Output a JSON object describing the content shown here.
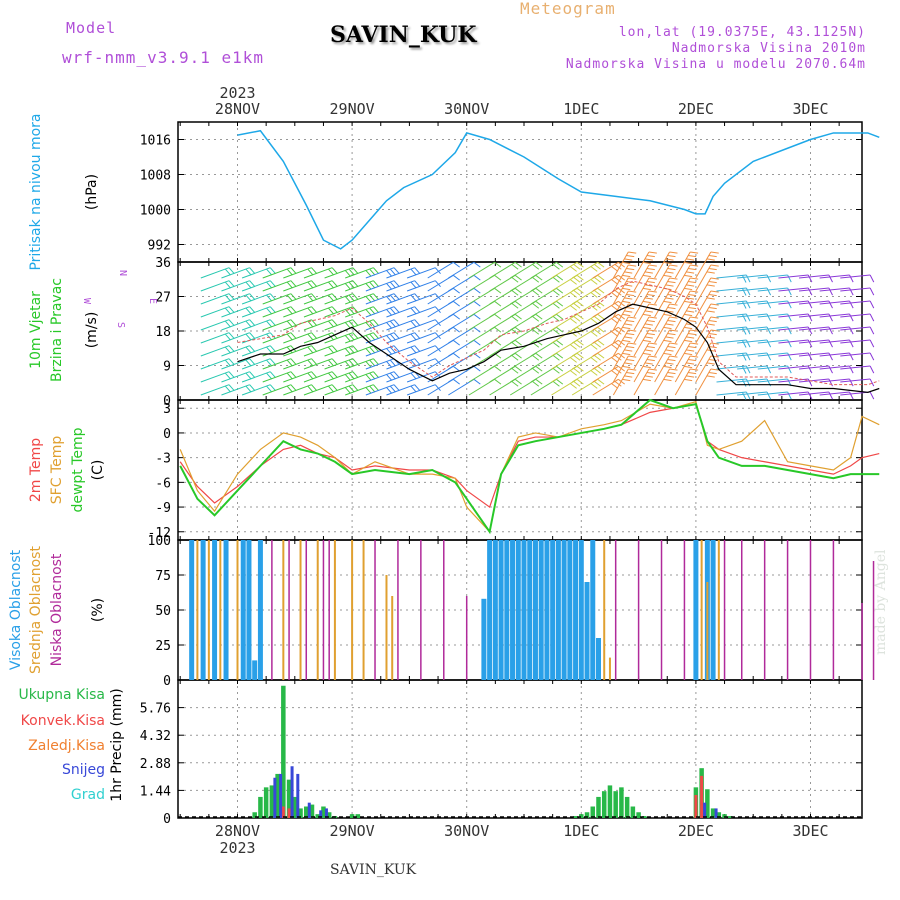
{
  "header": {
    "model_label": "Model",
    "model_name": "wrf-nmm_v3.9.1 e1km",
    "station": "SAVIN_KUK",
    "product": "Meteogram",
    "lonlat": "lon,lat (19.0375E, 43.1125N)",
    "elevation": "Nadmorska Visina 2010m",
    "elevation_model": "Nadmorska Visina u modelu 2070.64m"
  },
  "footer": {
    "station": "SAVIN_KUK",
    "credit": "made by Angel"
  },
  "colors": {
    "pressure": "#1ea8e8",
    "temp2m": "#f04848",
    "sfc_temp": "#e0a030",
    "dewpoint": "#28c828",
    "cloud_high": "#2aa0e8",
    "cloud_mid": "#e0a030",
    "cloud_low": "#b02a9a",
    "precip_total": "#28b848",
    "precip_conv": "#f04848",
    "precip_frozen": "#f08030",
    "precip_snow": "#3848d8",
    "precip_graupel": "#30d0d0"
  },
  "chart_data": [
    {
      "type": "line",
      "panel": "pressure",
      "title": "Pritisak na nivou mora",
      "ylabel": "(hPa)",
      "yticks": [
        992,
        1000,
        1008,
        1016
      ],
      "ylim": [
        988,
        1020
      ],
      "xticks": [
        "28NOV",
        "29NOV",
        "30NOV",
        "1DEC",
        "2DEC",
        "3DEC"
      ],
      "year": "2023",
      "x_days": [
        0.0,
        0.2,
        0.4,
        0.6,
        0.75,
        0.9,
        1.0,
        1.2,
        1.3,
        1.45,
        1.7,
        1.9,
        2.0,
        2.2,
        2.5,
        2.8,
        3.0,
        3.3,
        3.6,
        3.9,
        4.0,
        4.08,
        4.15,
        4.25,
        4.5,
        4.8,
        5.0,
        5.2,
        5.5,
        5.6
      ],
      "values": [
        1017,
        1018,
        1011,
        1001,
        993,
        991,
        993,
        999,
        1002,
        1005,
        1008,
        1013,
        1017.5,
        1016,
        1012,
        1007,
        1004,
        1003,
        1002,
        1000,
        999,
        999,
        1003,
        1006,
        1011,
        1014,
        1016,
        1017.5,
        1017.5,
        1016.5
      ]
    },
    {
      "type": "line",
      "panel": "wind",
      "title": "10m Vjetar Brzina i Pravac",
      "ylabel": "(m/s)",
      "yticks": [
        0,
        9,
        18,
        27,
        36
      ],
      "ylim": [
        0,
        36
      ],
      "compass": [
        "N",
        "S",
        "E",
        "W"
      ],
      "series": [
        {
          "name": "speed",
          "x_days": [
            0.0,
            0.2,
            0.4,
            0.55,
            0.7,
            0.85,
            1.0,
            1.15,
            1.3,
            1.5,
            1.7,
            1.85,
            2.0,
            2.15,
            2.3,
            2.5,
            2.7,
            2.85,
            3.0,
            3.15,
            3.3,
            3.45,
            3.6,
            3.75,
            3.9,
            4.0,
            4.1,
            4.2,
            4.35,
            4.6,
            4.8,
            5.0,
            5.2,
            5.5,
            5.6
          ],
          "values": [
            10,
            12,
            12,
            14,
            15,
            17,
            19,
            15,
            12,
            8,
            5,
            7,
            8,
            10,
            13,
            14,
            16,
            17,
            18,
            20,
            23,
            25,
            24,
            23,
            21,
            19,
            15,
            8,
            4,
            4,
            4,
            3,
            3,
            2,
            3
          ]
        },
        {
          "name": "gust",
          "x_days": [
            0.0,
            0.2,
            0.4,
            0.55,
            0.7,
            0.85,
            1.0,
            1.15,
            1.3,
            1.5,
            1.7,
            1.85,
            2.0,
            2.15,
            2.3,
            2.5,
            2.7,
            2.85,
            3.0,
            3.15,
            3.3,
            3.45,
            3.6,
            3.75,
            3.9,
            4.0,
            4.1,
            4.2,
            4.35,
            4.6,
            4.8,
            5.0,
            5.2,
            5.5,
            5.6
          ],
          "values": [
            15,
            16,
            17,
            20,
            21,
            22,
            24,
            20,
            15,
            10,
            6,
            9,
            11,
            13,
            17,
            18,
            20,
            21,
            23,
            25,
            29,
            31,
            30,
            29,
            27,
            25,
            19,
            10,
            6,
            6,
            6,
            5,
            4,
            4,
            5
          ]
        }
      ]
    },
    {
      "type": "line",
      "panel": "temperature",
      "title": "2m Temp SFC Temp dewpt Temp",
      "ylabel": "(C)",
      "yticks": [
        -12,
        -9,
        -6,
        -3,
        0,
        3
      ],
      "ylim": [
        -13,
        4
      ],
      "series": [
        {
          "name": "2m Temp",
          "x_days": [
            -0.5,
            -0.35,
            -0.2,
            0.0,
            0.2,
            0.4,
            0.55,
            0.7,
            0.85,
            1.0,
            1.2,
            1.5,
            1.7,
            1.9,
            2.0,
            2.2,
            2.3,
            2.45,
            2.6,
            2.8,
            3.0,
            3.2,
            3.35,
            3.6,
            3.8,
            4.0,
            4.1,
            4.2,
            4.4,
            4.6,
            4.8,
            5.0,
            5.2,
            5.35,
            5.45,
            5.6
          ],
          "values": [
            -3.5,
            -6.5,
            -8.5,
            -6.5,
            -4,
            -2,
            -1.5,
            -2.5,
            -3,
            -4.5,
            -4,
            -4.5,
            -4.5,
            -5.5,
            -7,
            -9,
            -5,
            -1,
            -0.5,
            -0.5,
            0,
            0.5,
            1,
            2.5,
            3,
            3.5,
            -1,
            -2,
            -3,
            -3.5,
            -4,
            -4.5,
            -5,
            -4,
            -3,
            -2.5
          ]
        },
        {
          "name": "SFC Temp",
          "x_days": [
            -0.5,
            -0.35,
            -0.2,
            0.0,
            0.2,
            0.4,
            0.55,
            0.7,
            0.85,
            1.0,
            1.2,
            1.5,
            1.7,
            1.9,
            2.0,
            2.2,
            2.3,
            2.45,
            2.6,
            2.8,
            3.0,
            3.2,
            3.35,
            3.6,
            3.8,
            4.0,
            4.1,
            4.2,
            4.4,
            4.6,
            4.8,
            5.0,
            5.2,
            5.35,
            5.45,
            5.6
          ],
          "values": [
            -2,
            -7,
            -9.5,
            -5,
            -2,
            0,
            -0.5,
            -1.5,
            -3,
            -5,
            -3.5,
            -5,
            -5,
            -5.5,
            -9,
            -12,
            -5,
            -0.5,
            0,
            -0.5,
            0.5,
            1,
            1.5,
            3.5,
            3,
            3.8,
            -1.5,
            -2,
            -1,
            1.5,
            -3.5,
            -4,
            -4.5,
            -3,
            2,
            1
          ]
        },
        {
          "name": "dewpt Temp",
          "x_days": [
            -0.5,
            -0.35,
            -0.2,
            0.0,
            0.2,
            0.4,
            0.55,
            0.7,
            0.85,
            1.0,
            1.2,
            1.5,
            1.7,
            1.9,
            2.0,
            2.2,
            2.3,
            2.45,
            2.6,
            2.8,
            3.0,
            3.2,
            3.35,
            3.6,
            3.8,
            4.0,
            4.1,
            4.2,
            4.4,
            4.6,
            4.8,
            5.0,
            5.2,
            5.35,
            5.45,
            5.6
          ],
          "values": [
            -4,
            -8,
            -10,
            -7,
            -4,
            -1,
            -2,
            -2.5,
            -3.5,
            -5,
            -4.5,
            -5,
            -4.5,
            -6,
            -8,
            -12,
            -5,
            -1.5,
            -1,
            -0.5,
            0,
            0.5,
            1,
            4,
            3,
            3.5,
            -1,
            -3,
            -4,
            -4,
            -4.5,
            -5,
            -5.5,
            -5,
            -5,
            -5
          ]
        }
      ]
    },
    {
      "type": "bar",
      "panel": "clouds",
      "title": "Visoka Oblacnost Srednja Oblacnost Niska Oblacnost",
      "ylabel": "(%)",
      "yticks": [
        0,
        25,
        50,
        75,
        100
      ],
      "ylim": [
        0,
        100
      ],
      "series": [
        {
          "name": "Visoka Oblacnost",
          "x_days": [
            -0.4,
            -0.3,
            -0.2,
            -0.1,
            0.05,
            0.1,
            0.15,
            0.2,
            2.15,
            2.2,
            2.25,
            2.3,
            2.35,
            2.4,
            2.45,
            2.5,
            2.55,
            2.6,
            2.65,
            2.7,
            2.75,
            2.8,
            2.85,
            2.9,
            2.95,
            3.0,
            3.05,
            3.1,
            3.15,
            4.0,
            4.1,
            4.15
          ],
          "values": [
            100,
            100,
            100,
            100,
            100,
            100,
            14,
            100,
            58,
            100,
            100,
            100,
            100,
            100,
            100,
            100,
            100,
            100,
            100,
            100,
            100,
            100,
            100,
            100,
            100,
            100,
            70,
            100,
            30,
            100,
            100,
            100
          ]
        },
        {
          "name": "Srednja Oblacnost",
          "x_days": [
            -0.35,
            -0.25,
            -0.15,
            0.0,
            0.4,
            0.55,
            0.7,
            0.85,
            1.0,
            1.1,
            1.3,
            1.35,
            3.2,
            3.25,
            4.05,
            4.1,
            4.2
          ],
          "values": [
            100,
            100,
            100,
            100,
            100,
            100,
            100,
            100,
            100,
            100,
            75,
            60,
            100,
            16,
            100,
            70,
            100
          ]
        },
        {
          "name": "Niska Oblacnost",
          "x_days": [
            0.3,
            0.45,
            0.6,
            0.75,
            0.8,
            1.2,
            1.4,
            1.6,
            1.8,
            2.0,
            3.3,
            3.5,
            3.7,
            3.9,
            4.25,
            4.4,
            4.6,
            4.8,
            5.0,
            5.2,
            5.45,
            5.55
          ],
          "values": [
            100,
            100,
            100,
            100,
            100,
            100,
            100,
            100,
            100,
            60,
            100,
            100,
            100,
            100,
            100,
            100,
            100,
            100,
            100,
            100,
            55,
            85
          ]
        }
      ]
    },
    {
      "type": "bar",
      "panel": "precipitation",
      "title": "Ukupna Kisa Konvek.Kisa Zaledj.Kisa Snijeg Grad",
      "ylabel": "1hr Precip (mm)",
      "yticks": [
        0,
        1.44,
        2.88,
        4.32,
        5.76
      ],
      "ylim": [
        0,
        7.2
      ],
      "legend": [
        "Ukupna Kisa",
        "Konvek.Kisa",
        "Zaledj.Kisa",
        "Snijeg",
        "Grad"
      ],
      "series": [
        {
          "name": "Ukupna Kisa",
          "x_days": [
            0.15,
            0.2,
            0.25,
            0.3,
            0.35,
            0.4,
            0.45,
            0.5,
            0.55,
            0.6,
            0.65,
            0.7,
            0.75,
            0.8,
            0.85,
            1.0,
            1.05,
            2.95,
            3.0,
            3.05,
            3.1,
            3.15,
            3.2,
            3.25,
            3.3,
            3.35,
            3.4,
            3.45,
            3.5,
            3.55,
            4.0,
            4.05,
            4.1,
            4.15,
            4.2,
            4.25,
            4.3
          ],
          "values": [
            0.3,
            1.1,
            1.6,
            1.7,
            2.3,
            6.9,
            2.0,
            1.1,
            0.5,
            0.6,
            0.7,
            0.2,
            0.6,
            0.3,
            0.1,
            0.2,
            0.2,
            0.1,
            0.2,
            0.3,
            0.6,
            1.1,
            1.4,
            1.7,
            1.4,
            1.6,
            1.1,
            0.6,
            0.3,
            0.1,
            1.6,
            2.6,
            1.5,
            0.5,
            0.3,
            0.2,
            0.1
          ]
        },
        {
          "name": "Konvek.Kisa",
          "x_days": [
            0.4,
            0.45,
            4.0,
            4.05
          ],
          "values": [
            0.6,
            0.5,
            1.2,
            2.2
          ]
        },
        {
          "name": "Snijeg",
          "x_days": [
            0.3,
            0.35,
            0.45,
            0.5,
            0.6,
            0.7,
            0.75,
            4.05,
            4.15
          ],
          "values": [
            2.1,
            2.3,
            2.7,
            2.3,
            0.8,
            0.4,
            0.5,
            0.8,
            0.5
          ]
        }
      ]
    }
  ]
}
